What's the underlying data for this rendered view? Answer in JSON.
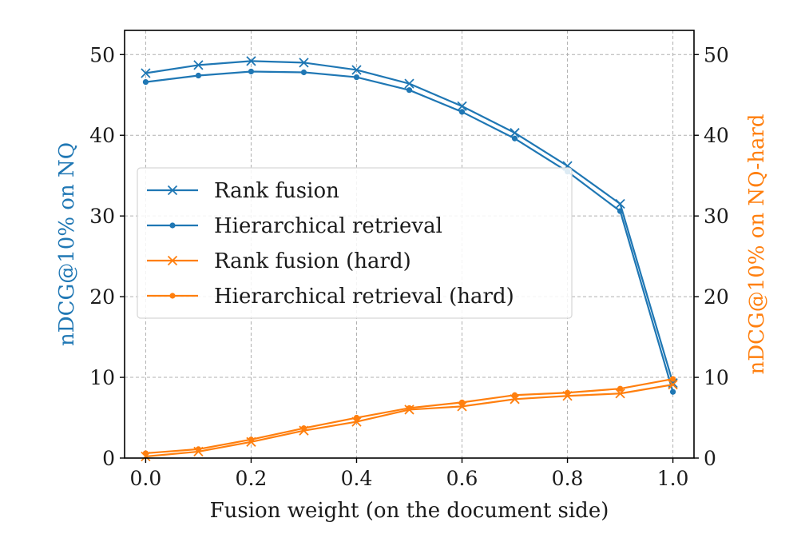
{
  "chart_data": {
    "type": "line",
    "xlabel": "Fusion weight (on the document side)",
    "ylabel_left": "nDCG@10% on NQ",
    "ylabel_right": "nDCG@10% on NQ-hard",
    "xlim": [
      -0.04,
      1.04
    ],
    "ylim_left": [
      0,
      53
    ],
    "ylim_right": [
      0,
      53
    ],
    "x_ticks": [
      "0.0",
      "0.2",
      "0.4",
      "0.6",
      "0.8",
      "1.0"
    ],
    "y_ticks_left": [
      "0",
      "10",
      "20",
      "30",
      "40",
      "50"
    ],
    "y_ticks_right": [
      "0",
      "10",
      "20",
      "30",
      "40",
      "50"
    ],
    "grid": true,
    "legend_position": "center-left",
    "x": [
      0.0,
      0.1,
      0.2,
      0.3,
      0.4,
      0.5,
      0.6,
      0.7,
      0.8,
      0.9,
      1.0
    ],
    "series": [
      {
        "name": "Rank fusion",
        "axis": "left",
        "color": "#1f77b4",
        "marker": "x",
        "values": [
          47.7,
          48.7,
          49.2,
          49.0,
          48.1,
          46.4,
          43.6,
          40.3,
          36.2,
          31.5,
          9.3
        ]
      },
      {
        "name": "Hierarchical retrieval",
        "axis": "left",
        "color": "#1f77b4",
        "marker": "dot",
        "values": [
          46.6,
          47.4,
          47.9,
          47.8,
          47.2,
          45.6,
          42.9,
          39.6,
          35.5,
          30.6,
          8.2
        ]
      },
      {
        "name": "Rank fusion (hard)",
        "axis": "right",
        "color": "#ff7f0e",
        "marker": "x",
        "values": [
          0.2,
          0.8,
          2.0,
          3.4,
          4.5,
          6.0,
          6.4,
          7.3,
          7.7,
          8.0,
          9.1
        ]
      },
      {
        "name": "Hierarchical retrieval (hard)",
        "axis": "right",
        "color": "#ff7f0e",
        "marker": "dot",
        "values": [
          0.6,
          1.1,
          2.3,
          3.7,
          5.0,
          6.2,
          6.9,
          7.8,
          8.1,
          8.6,
          9.8
        ]
      }
    ]
  }
}
